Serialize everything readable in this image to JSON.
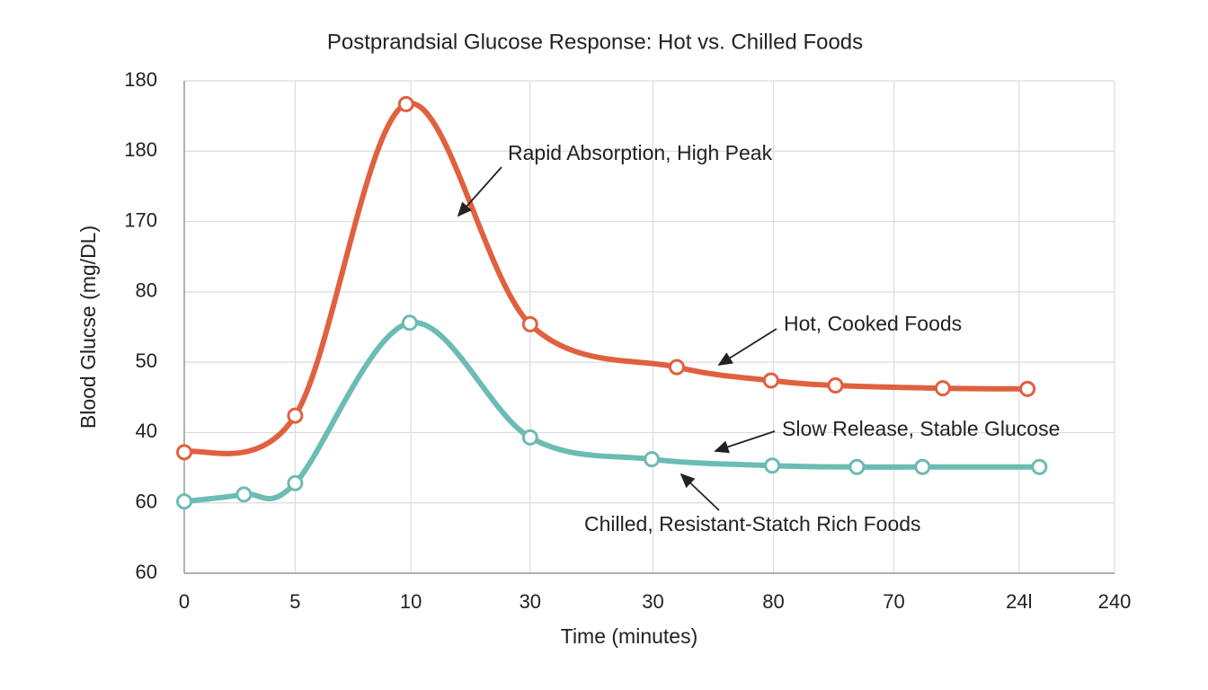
{
  "chart_data": {
    "type": "line",
    "title": "Postprandsial Glucose Response: Hot vs. Chilled Foods",
    "x_label": "Time (minutes)",
    "y_label": "Blood Glucse (mg/DL)",
    "xlim": [
      0,
      7.8
    ],
    "xticks": [
      {
        "value": 0,
        "label": "0"
      },
      {
        "value": 0.93,
        "label": "5"
      },
      {
        "value": 1.9,
        "label": "10"
      },
      {
        "value": 2.9,
        "label": "30"
      },
      {
        "value": 3.93,
        "label": "30"
      },
      {
        "value": 4.94,
        "label": "80"
      },
      {
        "value": 5.95,
        "label": "70"
      },
      {
        "value": 7,
        "label": "24l"
      },
      {
        "value": 7.8,
        "label": "240"
      }
    ],
    "ylim": [
      0,
      7
    ],
    "yticks": [
      {
        "value": 0,
        "label": "60"
      },
      {
        "value": 1,
        "label": "60"
      },
      {
        "value": 2,
        "label": "40"
      },
      {
        "value": 3,
        "label": "50"
      },
      {
        "value": 4,
        "label": "80"
      },
      {
        "value": 5,
        "label": "170"
      },
      {
        "value": 6,
        "label": "180"
      },
      {
        "value": 7,
        "label": "180"
      }
    ],
    "grid": true,
    "series": [
      {
        "name": "Hot, Cooked Foods",
        "color": "#e0603f",
        "x": [
          0,
          0.93,
          1.86,
          2.9,
          4.13,
          4.92,
          5.46,
          6.36,
          7.07
        ],
        "values": [
          1.72,
          2.24,
          6.67,
          3.54,
          2.93,
          2.74,
          2.67,
          2.63,
          2.62
        ]
      },
      {
        "name": "Chilled, Resistant-Statch Rich Foods",
        "color": "#6bbcb3",
        "x": [
          0,
          0.5,
          0.93,
          1.89,
          2.9,
          3.92,
          4.93,
          5.64,
          6.19,
          7.17
        ],
        "values": [
          1.02,
          1.12,
          1.28,
          3.56,
          1.93,
          1.62,
          1.53,
          1.51,
          1.51,
          1.51
        ]
      }
    ],
    "annotations": [
      "Rapid Absorption, High Peak",
      "Slow Release, Stable Glucose"
    ]
  }
}
